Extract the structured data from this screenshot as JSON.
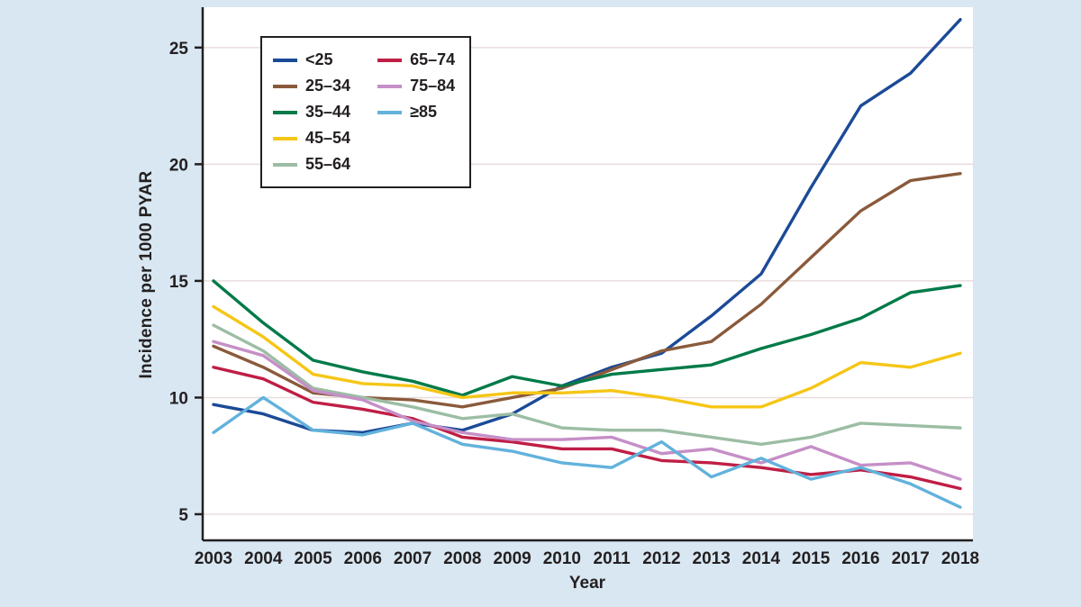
{
  "colors": {
    "page_bg": "#d8e7f2",
    "plot_bg": "#ffffff",
    "grid": "#e9dddd",
    "axis": "#231f20",
    "text": "#231f20",
    "legend_bg": "#ffffff",
    "legend_border": "#231f20"
  },
  "chart_data": {
    "type": "line",
    "title": "",
    "xlabel": "Year",
    "ylabel": "Incidence per 1000 PYAR",
    "x": [
      2003,
      2004,
      2005,
      2006,
      2007,
      2008,
      2009,
      2010,
      2011,
      2012,
      2013,
      2014,
      2015,
      2016,
      2017,
      2018
    ],
    "ylim": [
      3.88,
      26.73
    ],
    "yticks": [
      5,
      10,
      15,
      20,
      25
    ],
    "grid": true,
    "legend_position": "top-left",
    "series": [
      {
        "name": "<25",
        "color": "#1b4a97",
        "values": [
          9.7,
          9.3,
          8.6,
          8.5,
          8.9,
          8.6,
          9.3,
          10.5,
          11.3,
          11.9,
          13.5,
          15.3,
          19.0,
          22.5,
          23.9,
          26.2
        ]
      },
      {
        "name": "25–34",
        "color": "#8a5a3b",
        "values": [
          12.2,
          11.3,
          10.2,
          10.0,
          9.9,
          9.6,
          10.0,
          10.4,
          11.2,
          12.0,
          12.4,
          14.0,
          16.0,
          18.0,
          19.3,
          19.6
        ]
      },
      {
        "name": "35–44",
        "color": "#007a49",
        "values": [
          15.0,
          13.2,
          11.6,
          11.1,
          10.7,
          10.1,
          10.9,
          10.5,
          11.0,
          11.2,
          11.4,
          12.1,
          12.7,
          13.4,
          14.5,
          14.8
        ]
      },
      {
        "name": "45–54",
        "color": "#f5c616",
        "values": [
          13.9,
          12.6,
          11.0,
          10.6,
          10.5,
          10.0,
          10.2,
          10.2,
          10.3,
          10.0,
          9.6,
          9.6,
          10.4,
          11.5,
          11.3,
          11.9
        ]
      },
      {
        "name": "55–64",
        "color": "#9cbda4",
        "values": [
          13.1,
          12.0,
          10.4,
          10.0,
          9.6,
          9.1,
          9.3,
          8.7,
          8.6,
          8.6,
          8.3,
          8.0,
          8.3,
          8.9,
          8.8,
          8.7
        ]
      },
      {
        "name": "65–74",
        "color": "#bf1e45",
        "values": [
          11.3,
          10.8,
          9.8,
          9.5,
          9.1,
          8.3,
          8.1,
          7.8,
          7.8,
          7.3,
          7.2,
          7.0,
          6.7,
          6.9,
          6.6,
          6.1
        ]
      },
      {
        "name": "75–84",
        "color": "#c58fc7",
        "values": [
          12.4,
          11.8,
          10.3,
          9.9,
          9.0,
          8.5,
          8.2,
          8.2,
          8.3,
          7.6,
          7.8,
          7.2,
          7.9,
          7.1,
          7.2,
          6.5
        ]
      },
      {
        "name": "≥85",
        "color": "#62b2dc",
        "values": [
          8.5,
          10.0,
          8.6,
          8.4,
          8.9,
          8.0,
          7.7,
          7.2,
          7.0,
          8.1,
          6.6,
          7.4,
          6.5,
          7.0,
          6.3,
          5.3
        ]
      }
    ]
  }
}
